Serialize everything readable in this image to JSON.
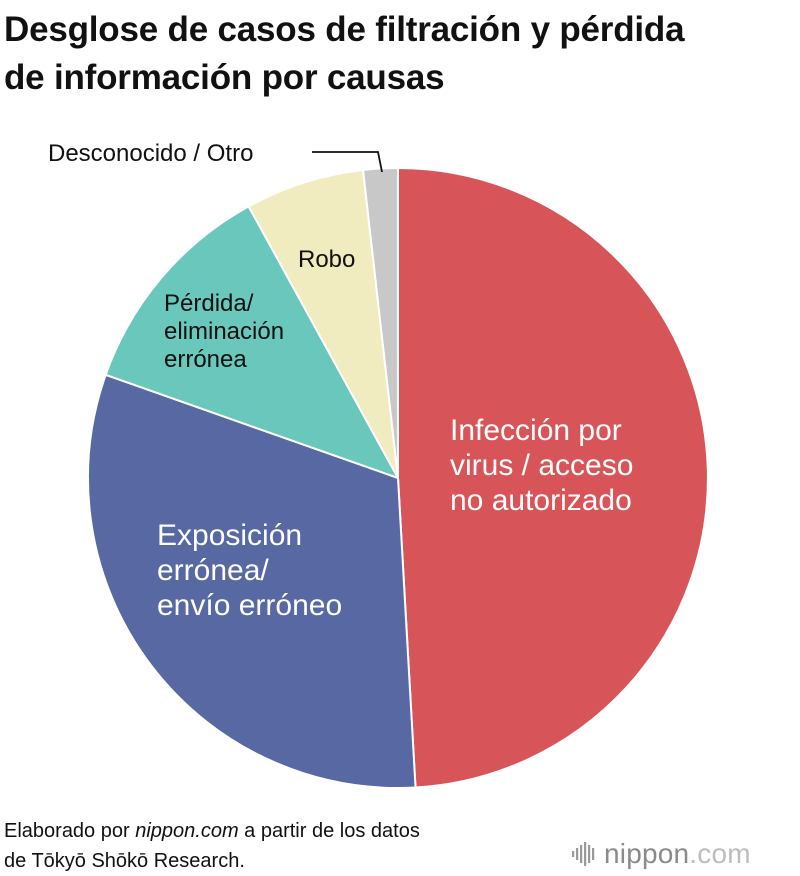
{
  "title": {
    "line1": "Desglose de casos de filtración y pérdida",
    "line2": "de información por causas"
  },
  "chart_data": {
    "type": "pie",
    "start_angle_deg": 0,
    "direction": "clockwise",
    "slices": [
      {
        "label": "Infección por virus / acceso no autorizado",
        "value": 49.1,
        "color": "#d75558",
        "label_color": "#ffffff"
      },
      {
        "label": "Exposición errónea/ envío erróneo",
        "value": 31.3,
        "color": "#5768a3",
        "label_color": "#ffffff"
      },
      {
        "label": "Pérdida/ eliminación errónea",
        "value": 11.6,
        "color": "#6ac7bb",
        "label_color": "#111111"
      },
      {
        "label": "Robo",
        "value": 6.2,
        "color": "#f1ecc0",
        "label_color": "#111111"
      },
      {
        "label": "Desconocido / Otro",
        "value": 1.8,
        "color": "#c8c8c8",
        "label_color": "#111111"
      }
    ],
    "labels": {
      "s0": [
        "Infección por",
        "virus / acceso",
        "no autorizado"
      ],
      "s1": [
        "Exposición",
        "errónea/",
        "envío erróneo"
      ],
      "s2": [
        "Pérdida/",
        "eliminación",
        "errónea"
      ],
      "s3": [
        "Robo"
      ],
      "s4": [
        "Desconocido / Otro"
      ]
    }
  },
  "footer": {
    "line1_pre": "Elaborado por ",
    "line1_em": "nippon.com",
    "line1_post": " a partir de los datos",
    "line2": "de Tōkyō Shōkō Research."
  },
  "logo": {
    "brand": "nippon",
    "domain": ".com",
    "icon": "nippon-bars-icon"
  }
}
